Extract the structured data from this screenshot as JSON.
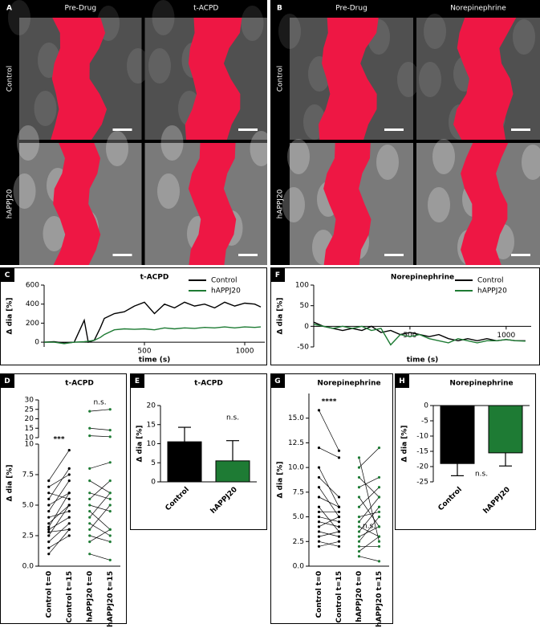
{
  "image_panels": [
    {
      "label": "A",
      "columns": [
        "Pre-Drug",
        "t-ACPD"
      ],
      "rows": [
        "Control",
        "hAPPJ20"
      ]
    },
    {
      "label": "B",
      "columns": [
        "Pre-Drug",
        "Norepinephrine"
      ],
      "rows": [
        "Control",
        "hAPPJ20"
      ]
    }
  ],
  "chart_data": [
    {
      "type": "line",
      "label": "C",
      "title": "t-ACPD",
      "xlabel": "time (s)",
      "ylabel": "Δ dia [%]",
      "x": [
        0,
        50,
        100,
        150,
        200,
        220,
        250,
        280,
        300,
        350,
        400,
        450,
        500,
        550,
        600,
        650,
        700,
        750,
        800,
        850,
        900,
        950,
        1000,
        1050,
        1080
      ],
      "series": [
        {
          "name": "Control",
          "color": "#000000",
          "values": [
            0,
            5,
            -10,
            0,
            230,
            0,
            20,
            150,
            250,
            300,
            320,
            380,
            420,
            300,
            400,
            360,
            420,
            380,
            400,
            360,
            420,
            380,
            410,
            400,
            370
          ]
        },
        {
          "name": "hAPPJ20",
          "color": "#1e7b34",
          "values": [
            0,
            0,
            -15,
            0,
            5,
            10,
            20,
            50,
            80,
            130,
            140,
            135,
            140,
            130,
            150,
            140,
            150,
            145,
            155,
            150,
            160,
            150,
            160,
            155,
            160
          ]
        }
      ],
      "xlim": [
        0,
        1100
      ],
      "xticks": [
        500,
        1000
      ],
      "ylim": [
        -50,
        600
      ],
      "yticks": [
        0,
        200,
        400,
        600
      ]
    },
    {
      "type": "paired",
      "label": "D",
      "title": "t-ACPD",
      "ylabel": "Δ dia [%]",
      "categories": [
        "Control t=0",
        "Control t=15",
        "hAPPJ20 t=0",
        "hAPPJ20 t=15"
      ],
      "pairs": [
        {
          "color": "#000000",
          "start": [
            1,
            1.5,
            2,
            2.5,
            2.8,
            3,
            3.2,
            3.5,
            4,
            4.5,
            5,
            5.5,
            6,
            6.5,
            7
          ],
          "end": [
            3,
            2.5,
            3.5,
            5,
            3,
            4,
            6,
            5,
            4.5,
            7,
            6,
            8,
            5.5,
            7.5,
            9.5
          ]
        },
        {
          "color": "#1e7b34",
          "start": [
            1,
            2,
            2.5,
            3,
            3.5,
            4,
            4.5,
            5,
            5.5,
            6,
            7,
            8,
            11,
            15,
            24
          ],
          "end": [
            0.5,
            3,
            2,
            5,
            2.5,
            6,
            3,
            4.5,
            7,
            5.5,
            6,
            8.5,
            10.5,
            14,
            25
          ]
        }
      ],
      "annotations": [
        "***",
        "n.s."
      ],
      "ylim": [
        0,
        10
      ],
      "yticks": [
        {
          "value": 0,
          "label": "0.0"
        },
        2.5,
        {
          "value": 5,
          "label": "5.0"
        },
        7.5,
        10
      ],
      "ylim_upper": [
        10,
        30
      ],
      "yticks_upper": [
        10,
        15,
        20,
        25,
        30
      ]
    },
    {
      "type": "bar",
      "label": "E",
      "title": "t-ACPD",
      "ylabel": "Δ dia [%]",
      "categories": [
        "Control",
        "hAPPJ20"
      ],
      "values": [
        10.5,
        5.5
      ],
      "errors": [
        3.8,
        5.3
      ],
      "colors": [
        "#000000",
        "#1e7b34"
      ],
      "annotations": [
        "n.s."
      ],
      "ylim": [
        0,
        20
      ],
      "yticks": [
        0,
        5,
        10,
        15,
        20
      ]
    },
    {
      "type": "line",
      "label": "F",
      "title": "Norepinephrine",
      "xlabel": "time (s)",
      "ylabel": "Δ dia [%]",
      "x": [
        0,
        50,
        100,
        150,
        200,
        250,
        300,
        350,
        400,
        450,
        500,
        550,
        600,
        650,
        700,
        750,
        800,
        850,
        900,
        950,
        1000,
        1050,
        1100
      ],
      "series": [
        {
          "name": "Control",
          "color": "#000000",
          "values": [
            10,
            0,
            -5,
            -10,
            -5,
            -10,
            0,
            -15,
            -10,
            -20,
            -15,
            -20,
            -25,
            -20,
            -30,
            -35,
            -30,
            -35,
            -30,
            -35,
            -32,
            -35,
            -35
          ]
        },
        {
          "name": "hAPPJ20",
          "color": "#1e7b34",
          "values": [
            5,
            0,
            -5,
            0,
            -5,
            0,
            -10,
            -5,
            -45,
            -20,
            -25,
            -20,
            -30,
            -35,
            -40,
            -30,
            -35,
            -40,
            -35,
            -35,
            -32,
            -35,
            -36
          ]
        }
      ],
      "xlim": [
        0,
        1130
      ],
      "xticks": [
        500,
        1000
      ],
      "ylim": [
        -50,
        100
      ],
      "yticks": [
        -50,
        0,
        50,
        100
      ]
    },
    {
      "type": "paired",
      "label": "G",
      "title": "Norepinephrine",
      "ylabel": "Δ dia [%]",
      "categories": [
        "Control t=0",
        "Control t=15",
        "hAPPJ20 t=0",
        "hAPPJ20 t=15"
      ],
      "pairs": [
        {
          "color": "#000000",
          "start": [
            2,
            2.5,
            3,
            3.5,
            4,
            4.5,
            5,
            5.5,
            6,
            7,
            8,
            9,
            10,
            12,
            15.8
          ],
          "end": [
            2.5,
            2,
            3.5,
            3,
            5,
            4,
            4.5,
            5.5,
            3.5,
            6,
            5,
            7,
            6,
            11,
            11.7
          ]
        },
        {
          "color": "#1e7b34",
          "start": [
            1,
            1.5,
            2,
            2.5,
            3,
            3.5,
            4,
            4.5,
            5,
            6,
            7,
            8,
            9,
            10,
            11
          ],
          "end": [
            0.5,
            3,
            2,
            5,
            4,
            6,
            3,
            7,
            5.5,
            8,
            4,
            9,
            7,
            12,
            2.5
          ]
        }
      ],
      "annotations": [
        "****",
        "n.s."
      ],
      "ylim": [
        0,
        17.5
      ],
      "yticks": [
        {
          "value": 0,
          "label": "0.0"
        },
        2.5,
        {
          "value": 5,
          "label": "5.0"
        },
        7.5,
        {
          "value": 10,
          "label": "10.0"
        },
        12.5,
        {
          "value": 15,
          "label": "15.0"
        }
      ]
    },
    {
      "type": "bar",
      "label": "H",
      "title": "Norepinephrine",
      "ylabel": "Δ dia [%]",
      "categories": [
        "Control",
        "hAPPJ20"
      ],
      "values": [
        -19,
        -15.5
      ],
      "errors": [
        4,
        4.3
      ],
      "colors": [
        "#000000",
        "#1e7b34"
      ],
      "annotations": [
        "n.s."
      ],
      "ylim": [
        -25,
        0
      ],
      "yticks": [
        0,
        -5,
        -10,
        -15,
        -20,
        -25
      ]
    }
  ]
}
